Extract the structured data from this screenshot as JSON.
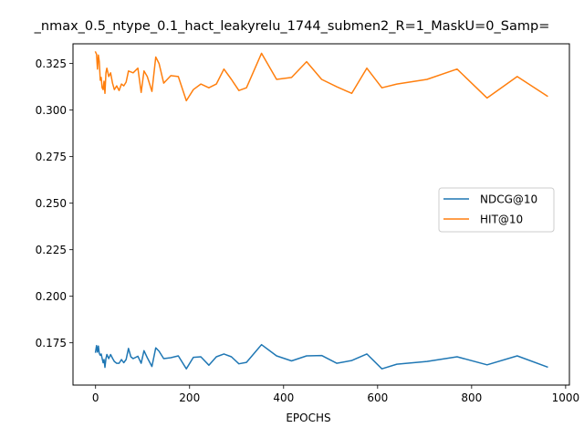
{
  "chart_data": {
    "type": "line",
    "title": "_nmax_0.5_ntype_0.1_hact_leakyrelu_1744_submen2_R=1_MaskU=0_Samp=",
    "xlabel": "EPOCHS",
    "ylabel": "",
    "xlim": [
      -48,
      1008
    ],
    "ylim": [
      0.1523,
      0.3356
    ],
    "xticks": [
      0,
      200,
      400,
      600,
      800,
      1000
    ],
    "yticks": [
      0.175,
      0.2,
      0.225,
      0.25,
      0.275,
      0.3,
      0.325
    ],
    "ytick_labels": [
      "0.175",
      "0.200",
      "0.225",
      "0.250",
      "0.275",
      "0.300",
      "0.325"
    ],
    "grid": false,
    "legend_position": "center-right",
    "series": [
      {
        "name": "NDCG@10",
        "color": "#1f77b4",
        "points": [
          [
            0,
            0.17
          ],
          [
            2,
            0.1735
          ],
          [
            4,
            0.17
          ],
          [
            6,
            0.1733
          ],
          [
            8,
            0.1693
          ],
          [
            10,
            0.1683
          ],
          [
            12,
            0.169
          ],
          [
            14,
            0.1667
          ],
          [
            16,
            0.1643
          ],
          [
            18,
            0.166
          ],
          [
            20,
            0.1618
          ],
          [
            22,
            0.1665
          ],
          [
            24,
            0.1687
          ],
          [
            28,
            0.1665
          ],
          [
            32,
            0.1687
          ],
          [
            36,
            0.1667
          ],
          [
            40,
            0.165
          ],
          [
            45,
            0.164
          ],
          [
            50,
            0.164
          ],
          [
            55,
            0.166
          ],
          [
            60,
            0.1643
          ],
          [
            65,
            0.166
          ],
          [
            70,
            0.172
          ],
          [
            75,
            0.1675
          ],
          [
            80,
            0.1665
          ],
          [
            90,
            0.1678
          ],
          [
            97,
            0.164
          ],
          [
            103,
            0.1708
          ],
          [
            110,
            0.167
          ],
          [
            120,
            0.1623
          ],
          [
            128,
            0.1723
          ],
          [
            135,
            0.1705
          ],
          [
            145,
            0.1665
          ],
          [
            160,
            0.167
          ],
          [
            176,
            0.168
          ],
          [
            193,
            0.161
          ],
          [
            208,
            0.1672
          ],
          [
            224,
            0.1675
          ],
          [
            241,
            0.163
          ],
          [
            257,
            0.1675
          ],
          [
            273,
            0.169
          ],
          [
            289,
            0.1675
          ],
          [
            305,
            0.1637
          ],
          [
            321,
            0.1645
          ],
          [
            353,
            0.174
          ],
          [
            385,
            0.168
          ],
          [
            417,
            0.1653
          ],
          [
            449,
            0.168
          ],
          [
            481,
            0.1682
          ],
          [
            513,
            0.164
          ],
          [
            545,
            0.1655
          ],
          [
            577,
            0.169
          ],
          [
            609,
            0.161
          ],
          [
            641,
            0.1635
          ],
          [
            705,
            0.165
          ],
          [
            769,
            0.1675
          ],
          [
            833,
            0.1632
          ],
          [
            897,
            0.168
          ],
          [
            961,
            0.162
          ]
        ]
      },
      {
        "name": "HIT@10",
        "color": "#ff7f0e",
        "points": [
          [
            0,
            0.3312
          ],
          [
            2,
            0.33
          ],
          [
            4,
            0.322
          ],
          [
            6,
            0.3295
          ],
          [
            8,
            0.326
          ],
          [
            10,
            0.316
          ],
          [
            12,
            0.3175
          ],
          [
            14,
            0.312
          ],
          [
            16,
            0.311
          ],
          [
            18,
            0.3155
          ],
          [
            20,
            0.309
          ],
          [
            22,
            0.32
          ],
          [
            24,
            0.3225
          ],
          [
            28,
            0.318
          ],
          [
            32,
            0.32
          ],
          [
            36,
            0.3145
          ],
          [
            40,
            0.311
          ],
          [
            45,
            0.313
          ],
          [
            50,
            0.3105
          ],
          [
            55,
            0.314
          ],
          [
            60,
            0.313
          ],
          [
            65,
            0.315
          ],
          [
            70,
            0.321
          ],
          [
            75,
            0.3205
          ],
          [
            80,
            0.32
          ],
          [
            90,
            0.3225
          ],
          [
            97,
            0.3095
          ],
          [
            103,
            0.321
          ],
          [
            110,
            0.318
          ],
          [
            120,
            0.31
          ],
          [
            128,
            0.3285
          ],
          [
            135,
            0.325
          ],
          [
            145,
            0.3145
          ],
          [
            160,
            0.3185
          ],
          [
            176,
            0.318
          ],
          [
            193,
            0.305
          ],
          [
            208,
            0.311
          ],
          [
            224,
            0.314
          ],
          [
            241,
            0.312
          ],
          [
            257,
            0.314
          ],
          [
            273,
            0.322
          ],
          [
            289,
            0.3165
          ],
          [
            305,
            0.3105
          ],
          [
            321,
            0.312
          ],
          [
            353,
            0.3305
          ],
          [
            385,
            0.3165
          ],
          [
            417,
            0.3175
          ],
          [
            449,
            0.326
          ],
          [
            481,
            0.3165
          ],
          [
            513,
            0.3125
          ],
          [
            545,
            0.309
          ],
          [
            577,
            0.3225
          ],
          [
            609,
            0.312
          ],
          [
            641,
            0.314
          ],
          [
            705,
            0.3165
          ],
          [
            769,
            0.322
          ],
          [
            833,
            0.3065
          ],
          [
            897,
            0.318
          ],
          [
            961,
            0.3075
          ]
        ]
      }
    ]
  }
}
